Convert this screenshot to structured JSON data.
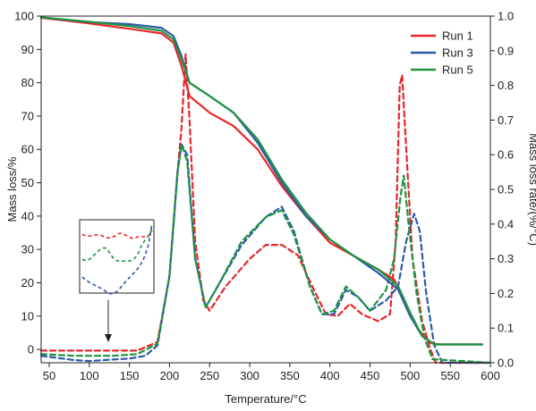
{
  "chart_data": {
    "type": "line",
    "xlabel": "Temperature/°C",
    "ylabel_left": "Mass loss/%",
    "ylabel_right": "Mass loss rate/(%/°C)",
    "xlim": [
      40,
      600
    ],
    "ylim_left": [
      -4,
      100
    ],
    "ylim_right": [
      0,
      1.0
    ],
    "x_ticks": [
      50,
      100,
      150,
      200,
      250,
      300,
      350,
      400,
      450,
      500,
      550,
      600
    ],
    "y_left_ticks": [
      0,
      10,
      20,
      30,
      40,
      50,
      60,
      70,
      80,
      90,
      100
    ],
    "y_right_ticks": [
      "0.0",
      "0.1",
      "0.2",
      "0.3",
      "0.4",
      "0.5",
      "0.6",
      "0.7",
      "0.8",
      "0.9",
      "1.0"
    ],
    "legend_position": "top-right",
    "annotation": "inset zoom of the low-temperature region of the rate curves, with a downward arrow pointing to about 100 °C",
    "series": [
      {
        "name": "Run 1",
        "color": "#e8262a",
        "axis": "left",
        "style": "solid",
        "points": [
          [
            40,
            99.5
          ],
          [
            100,
            97.8
          ],
          [
            150,
            96.2
          ],
          [
            190,
            94.8
          ],
          [
            205,
            92
          ],
          [
            215,
            85
          ],
          [
            225,
            76
          ],
          [
            250,
            71
          ],
          [
            280,
            67
          ],
          [
            310,
            60
          ],
          [
            340,
            49
          ],
          [
            370,
            40
          ],
          [
            400,
            32
          ],
          [
            430,
            28
          ],
          [
            460,
            24
          ],
          [
            480,
            21
          ],
          [
            495,
            13
          ],
          [
            510,
            6
          ],
          [
            525,
            2
          ],
          [
            535,
            1.5
          ],
          [
            550,
            1.5
          ],
          [
            590,
            1.5
          ]
        ]
      },
      {
        "name": "Run 3",
        "color": "#2d5aa8",
        "axis": "left",
        "style": "solid",
        "points": [
          [
            40,
            99.6
          ],
          [
            100,
            98.2
          ],
          [
            150,
            97.6
          ],
          [
            190,
            96.5
          ],
          [
            205,
            94
          ],
          [
            215,
            88
          ],
          [
            225,
            80
          ],
          [
            250,
            76
          ],
          [
            280,
            71
          ],
          [
            310,
            62
          ],
          [
            340,
            50
          ],
          [
            370,
            40
          ],
          [
            400,
            33
          ],
          [
            430,
            28
          ],
          [
            460,
            23
          ],
          [
            485,
            18
          ],
          [
            500,
            10
          ],
          [
            515,
            4
          ],
          [
            530,
            1.5
          ],
          [
            550,
            1.5
          ],
          [
            590,
            1.5
          ]
        ]
      },
      {
        "name": "Run 5",
        "color": "#1f9440",
        "axis": "left",
        "style": "solid",
        "points": [
          [
            40,
            99.6
          ],
          [
            100,
            98.3
          ],
          [
            150,
            97.0
          ],
          [
            190,
            95.6
          ],
          [
            205,
            93
          ],
          [
            215,
            87
          ],
          [
            225,
            80
          ],
          [
            250,
            76
          ],
          [
            280,
            71
          ],
          [
            310,
            63
          ],
          [
            340,
            51
          ],
          [
            370,
            41
          ],
          [
            400,
            33
          ],
          [
            430,
            28
          ],
          [
            460,
            24
          ],
          [
            485,
            19
          ],
          [
            500,
            11
          ],
          [
            515,
            4
          ],
          [
            530,
            1.5
          ],
          [
            550,
            1.5
          ],
          [
            590,
            1.5
          ]
        ]
      },
      {
        "name": "Run 1 rate",
        "color": "#e8262a",
        "axis": "right",
        "style": "dashed",
        "points": [
          [
            40,
            0.035
          ],
          [
            80,
            0.035
          ],
          [
            120,
            0.035
          ],
          [
            160,
            0.035
          ],
          [
            185,
            0.06
          ],
          [
            200,
            0.25
          ],
          [
            210,
            0.55
          ],
          [
            215,
            0.68
          ],
          [
            220,
            0.89
          ],
          [
            225,
            0.7
          ],
          [
            232,
            0.35
          ],
          [
            242,
            0.18
          ],
          [
            250,
            0.15
          ],
          [
            270,
            0.22
          ],
          [
            300,
            0.3
          ],
          [
            320,
            0.34
          ],
          [
            340,
            0.34
          ],
          [
            360,
            0.31
          ],
          [
            380,
            0.21
          ],
          [
            395,
            0.14
          ],
          [
            410,
            0.135
          ],
          [
            425,
            0.17
          ],
          [
            440,
            0.14
          ],
          [
            460,
            0.12
          ],
          [
            475,
            0.14
          ],
          [
            482,
            0.35
          ],
          [
            487,
            0.8
          ],
          [
            490,
            0.83
          ],
          [
            495,
            0.62
          ],
          [
            503,
            0.3
          ],
          [
            515,
            0.12
          ],
          [
            525,
            0.04
          ],
          [
            532,
            0.0
          ],
          [
            600,
            0.0
          ]
        ]
      },
      {
        "name": "Run 3 rate",
        "color": "#2d5aa8",
        "axis": "right",
        "style": "dashed",
        "points": [
          [
            40,
            0.02
          ],
          [
            80,
            0.008
          ],
          [
            100,
            0.005
          ],
          [
            120,
            0.008
          ],
          [
            150,
            0.012
          ],
          [
            170,
            0.02
          ],
          [
            185,
            0.05
          ],
          [
            200,
            0.25
          ],
          [
            210,
            0.55
          ],
          [
            215,
            0.63
          ],
          [
            222,
            0.6
          ],
          [
            232,
            0.3
          ],
          [
            245,
            0.16
          ],
          [
            260,
            0.22
          ],
          [
            290,
            0.34
          ],
          [
            320,
            0.42
          ],
          [
            340,
            0.45
          ],
          [
            355,
            0.38
          ],
          [
            375,
            0.22
          ],
          [
            390,
            0.14
          ],
          [
            405,
            0.14
          ],
          [
            420,
            0.21
          ],
          [
            435,
            0.19
          ],
          [
            450,
            0.15
          ],
          [
            470,
            0.18
          ],
          [
            485,
            0.22
          ],
          [
            495,
            0.35
          ],
          [
            505,
            0.43
          ],
          [
            512,
            0.38
          ],
          [
            520,
            0.2
          ],
          [
            530,
            0.05
          ],
          [
            540,
            0.0
          ],
          [
            600,
            0.0
          ]
        ]
      },
      {
        "name": "Run 5 rate",
        "color": "#1f9440",
        "axis": "right",
        "style": "dashed",
        "points": [
          [
            40,
            0.025
          ],
          [
            80,
            0.02
          ],
          [
            100,
            0.02
          ],
          [
            130,
            0.02
          ],
          [
            160,
            0.025
          ],
          [
            185,
            0.055
          ],
          [
            200,
            0.25
          ],
          [
            210,
            0.55
          ],
          [
            215,
            0.63
          ],
          [
            222,
            0.58
          ],
          [
            232,
            0.3
          ],
          [
            245,
            0.16
          ],
          [
            260,
            0.22
          ],
          [
            290,
            0.35
          ],
          [
            320,
            0.42
          ],
          [
            340,
            0.44
          ],
          [
            355,
            0.37
          ],
          [
            375,
            0.22
          ],
          [
            390,
            0.14
          ],
          [
            405,
            0.15
          ],
          [
            420,
            0.22
          ],
          [
            435,
            0.19
          ],
          [
            450,
            0.15
          ],
          [
            470,
            0.21
          ],
          [
            480,
            0.3
          ],
          [
            488,
            0.48
          ],
          [
            492,
            0.54
          ],
          [
            498,
            0.4
          ],
          [
            508,
            0.2
          ],
          [
            518,
            0.07
          ],
          [
            528,
            0.01
          ],
          [
            600,
            0.0
          ]
        ]
      }
    ]
  }
}
